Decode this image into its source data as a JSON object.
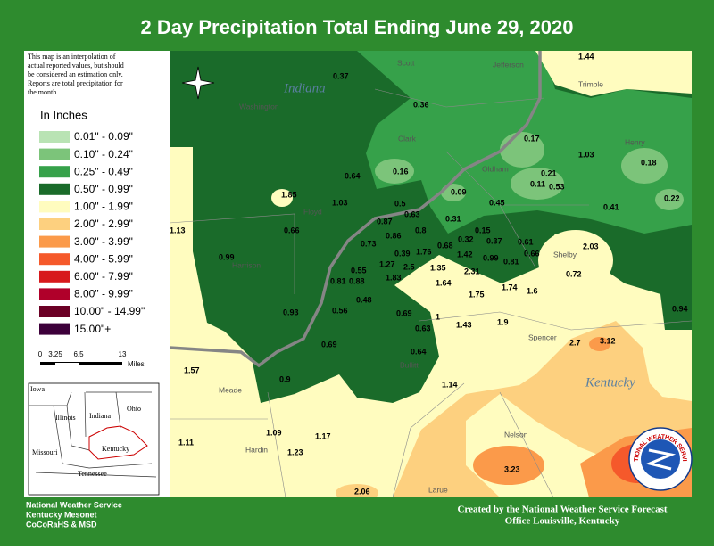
{
  "header": {
    "title": "2 Day Precipitation Total Ending June 29, 2020"
  },
  "note": [
    "This map is an interpolation of",
    "actual reported values, but should",
    "be considered an estimation only.",
    "Reports are total precipitation for",
    "the month."
  ],
  "legend": {
    "title": "In Inches",
    "items": [
      {
        "label": "0.01\" - 0.09\"",
        "color": "#b9e3b4"
      },
      {
        "label": "0.10\" - 0.24\"",
        "color": "#7cc47a"
      },
      {
        "label": "0.25\" - 0.49\"",
        "color": "#36a14a"
      },
      {
        "label": "0.50\" - 0.99\"",
        "color": "#1a6b2a"
      },
      {
        "label": "1.00\" - 1.99\"",
        "color": "#fffcbf"
      },
      {
        "label": "2.00\" - 2.99\"",
        "color": "#fdd07f"
      },
      {
        "label": "3.00\" - 3.99\"",
        "color": "#fb9a4a"
      },
      {
        "label": "4.00\" - 5.99\"",
        "color": "#f5592b"
      },
      {
        "label": "6.00\" - 7.99\"",
        "color": "#d7191c"
      },
      {
        "label": "8.00\" - 9.99\"",
        "color": "#b0002a"
      },
      {
        "label": "10.00\" - 14.99\"",
        "color": "#6b0025"
      },
      {
        "label": "15.00\"+",
        "color": "#3d003a"
      }
    ]
  },
  "scale": {
    "ticks": [
      "0",
      "3.25",
      "6.5",
      "13"
    ],
    "unit": "Miles"
  },
  "map": {
    "states": [
      "Indiana",
      "Kentucky"
    ],
    "counties": [
      "Scott",
      "Jefferson",
      "Trimble",
      "Washington",
      "Clark",
      "Oldham",
      "Henry",
      "Floyd",
      "Harrison",
      "Shelby",
      "Spencer",
      "Bullitt",
      "Meade",
      "Hardin",
      "Nelson",
      "Larue"
    ],
    "reports": [
      0.37,
      1.44,
      0.36,
      0.17,
      1.03,
      0.18,
      0.16,
      0.64,
      0.21,
      0.11,
      0.53,
      0.09,
      1.85,
      1.03,
      0.5,
      0.45,
      0.22,
      0.63,
      0.41,
      0.87,
      0.31,
      1.13,
      0.66,
      0.8,
      0.15,
      0.86,
      0.73,
      0.32,
      0.37,
      0.61,
      2.03,
      0.68,
      0.39,
      1.76,
      1.42,
      0.66,
      0.99,
      0.99,
      0.81,
      1.27,
      2.5,
      1.35,
      0.55,
      2.31,
      0.72,
      1.83,
      0.81,
      0.88,
      1.64,
      1.74,
      1.6,
      1.75,
      0.48,
      0.56,
      0.94,
      0.93,
      0.69,
      1,
      1.9,
      1.43,
      0.63,
      2.7,
      3.12,
      0.69,
      0.64,
      1.57,
      0.9,
      1.14,
      1.09,
      1.17,
      1.11,
      1.23,
      3.23,
      2.06
    ]
  },
  "inset": {
    "labels": [
      "Iowa",
      "Illinois",
      "Indiana",
      "Ohio",
      "Missouri",
      "Kentucky",
      "Tennessee"
    ]
  },
  "footer": {
    "left": [
      "National Weather Service",
      "Kentucky Mesonet",
      "CoCoRaHS & MSD"
    ],
    "right": [
      "Created by the National Weather Service Forecast",
      "Office Louisville, Kentucky"
    ]
  },
  "logo": {
    "text": "NATIONAL WEATHER SERVICE"
  }
}
